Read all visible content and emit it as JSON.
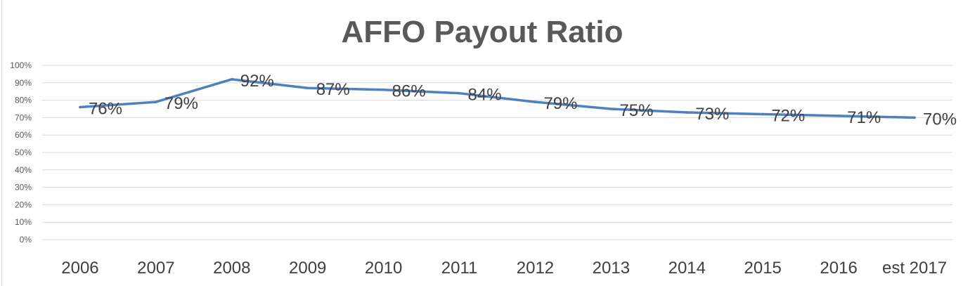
{
  "chart_data": {
    "type": "line",
    "title": "AFFO Payout Ratio",
    "xlabel": "",
    "ylabel": "",
    "categories": [
      "2006",
      "2007",
      "2008",
      "2009",
      "2010",
      "2011",
      "2012",
      "2013",
      "2014",
      "2015",
      "2016",
      "est 2017"
    ],
    "series": [
      {
        "values": [
          76,
          79,
          92,
          87,
          86,
          84,
          79,
          75,
          73,
          72,
          71,
          70
        ],
        "data_labels": [
          "76%",
          "79%",
          "92%",
          "87%",
          "86%",
          "84%",
          "79%",
          "75%",
          "73%",
          "72%",
          "71%",
          "70%"
        ],
        "color": "#4f81bd"
      }
    ],
    "ylim": [
      0,
      100
    ],
    "yticks": [
      "0%",
      "10%",
      "20%",
      "30%",
      "40%",
      "50%",
      "60%",
      "70%",
      "80%",
      "90%",
      "100%"
    ],
    "grid": true,
    "legend": "none"
  }
}
